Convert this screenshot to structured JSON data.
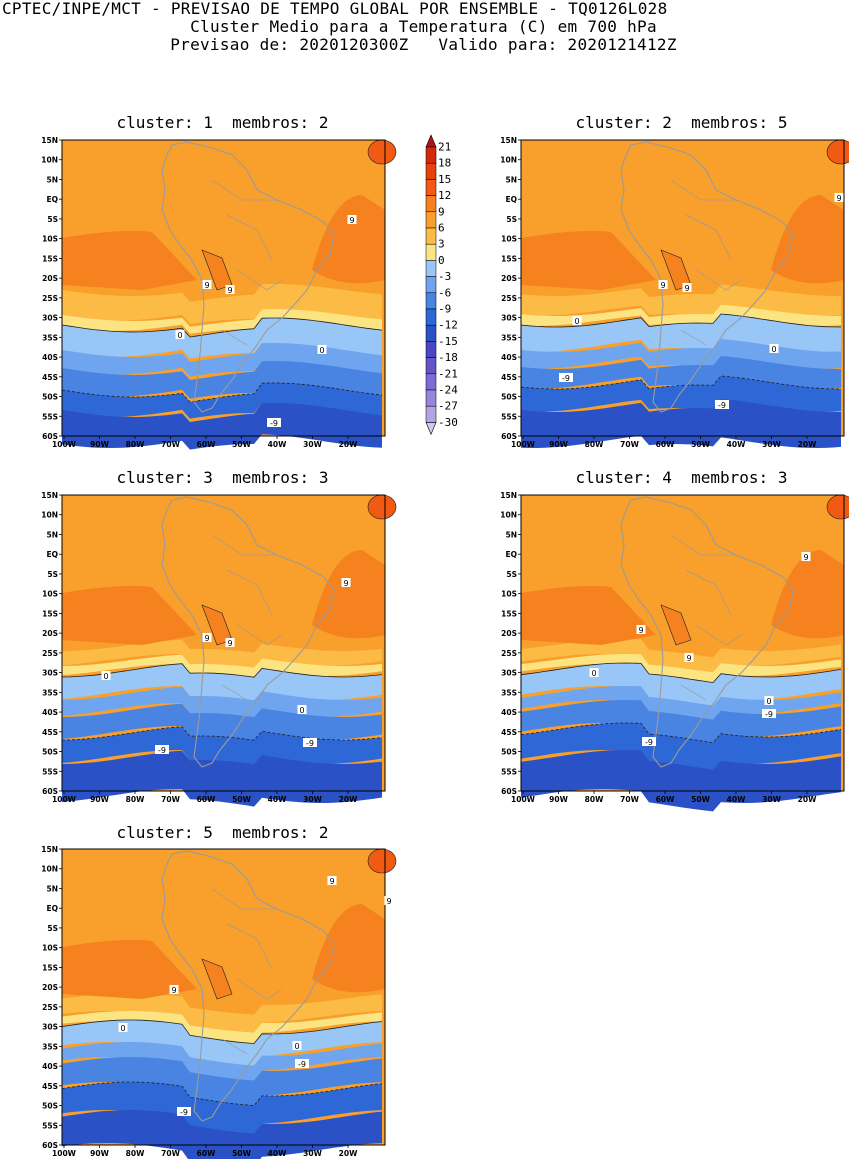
{
  "header": {
    "line1": "CPTEC/INPE/MCT - PREVISAO DE TEMPO GLOBAL POR ENSEMBLE - TQ0126L028",
    "line2": "Cluster Medio para a Temperatura (C) em 700 hPa",
    "line3": "Previsao de: 2020120300Z   Valido para: 2020121412Z"
  },
  "panels": [
    {
      "title": "cluster: 1  membros: 2",
      "contour_labels": [
        "9",
        "9",
        "9",
        "0",
        "0",
        "-9"
      ]
    },
    {
      "title": "cluster: 2  membros: 5",
      "contour_labels": [
        "9",
        "9",
        "9",
        "0",
        "0",
        "-9",
        "-9"
      ]
    },
    {
      "title": "cluster: 3  membros: 3",
      "contour_labels": [
        "9",
        "9",
        "9",
        "0",
        "0",
        "-9",
        "-9"
      ]
    },
    {
      "title": "cluster: 4  membros: 3",
      "contour_labels": [
        "9",
        "9",
        "9",
        "0",
        "0",
        "-9",
        "-9"
      ]
    },
    {
      "title": "cluster: 5  membros: 2",
      "contour_labels": [
        "9",
        "9",
        "9",
        "0",
        "0",
        "-9",
        "-9"
      ]
    }
  ],
  "axes": {
    "lat_labels": [
      "15N",
      "10N",
      "5N",
      "EQ",
      "5S",
      "10S",
      "15S",
      "20S",
      "25S",
      "30S",
      "35S",
      "40S",
      "45S",
      "50S",
      "55S",
      "60S"
    ],
    "lon_labels": [
      "100W",
      "90W",
      "80W",
      "70W",
      "60W",
      "50W",
      "40W",
      "30W",
      "20W"
    ]
  },
  "colorbar": {
    "levels": [
      "21",
      "18",
      "15",
      "12",
      "9",
      "6",
      "3",
      "0",
      "-3",
      "-6",
      "-9",
      "-12",
      "-15",
      "-18",
      "-21",
      "-24",
      "-27",
      "-30"
    ],
    "colors": [
      "#b01515",
      "#d42a0c",
      "#e8410c",
      "#f05a12",
      "#f5821e",
      "#f9a02c",
      "#fcbb45",
      "#fde482",
      "#98c6f6",
      "#6fa4ee",
      "#4a84e2",
      "#2e68d6",
      "#2a52c6",
      "#4a47c4",
      "#6455c8",
      "#7d6cd4",
      "#9886dc",
      "#b5a4e4",
      "#d3c8ee"
    ]
  },
  "map_colors": {
    "land": "#9a9a9a",
    "contour": "#202020"
  }
}
